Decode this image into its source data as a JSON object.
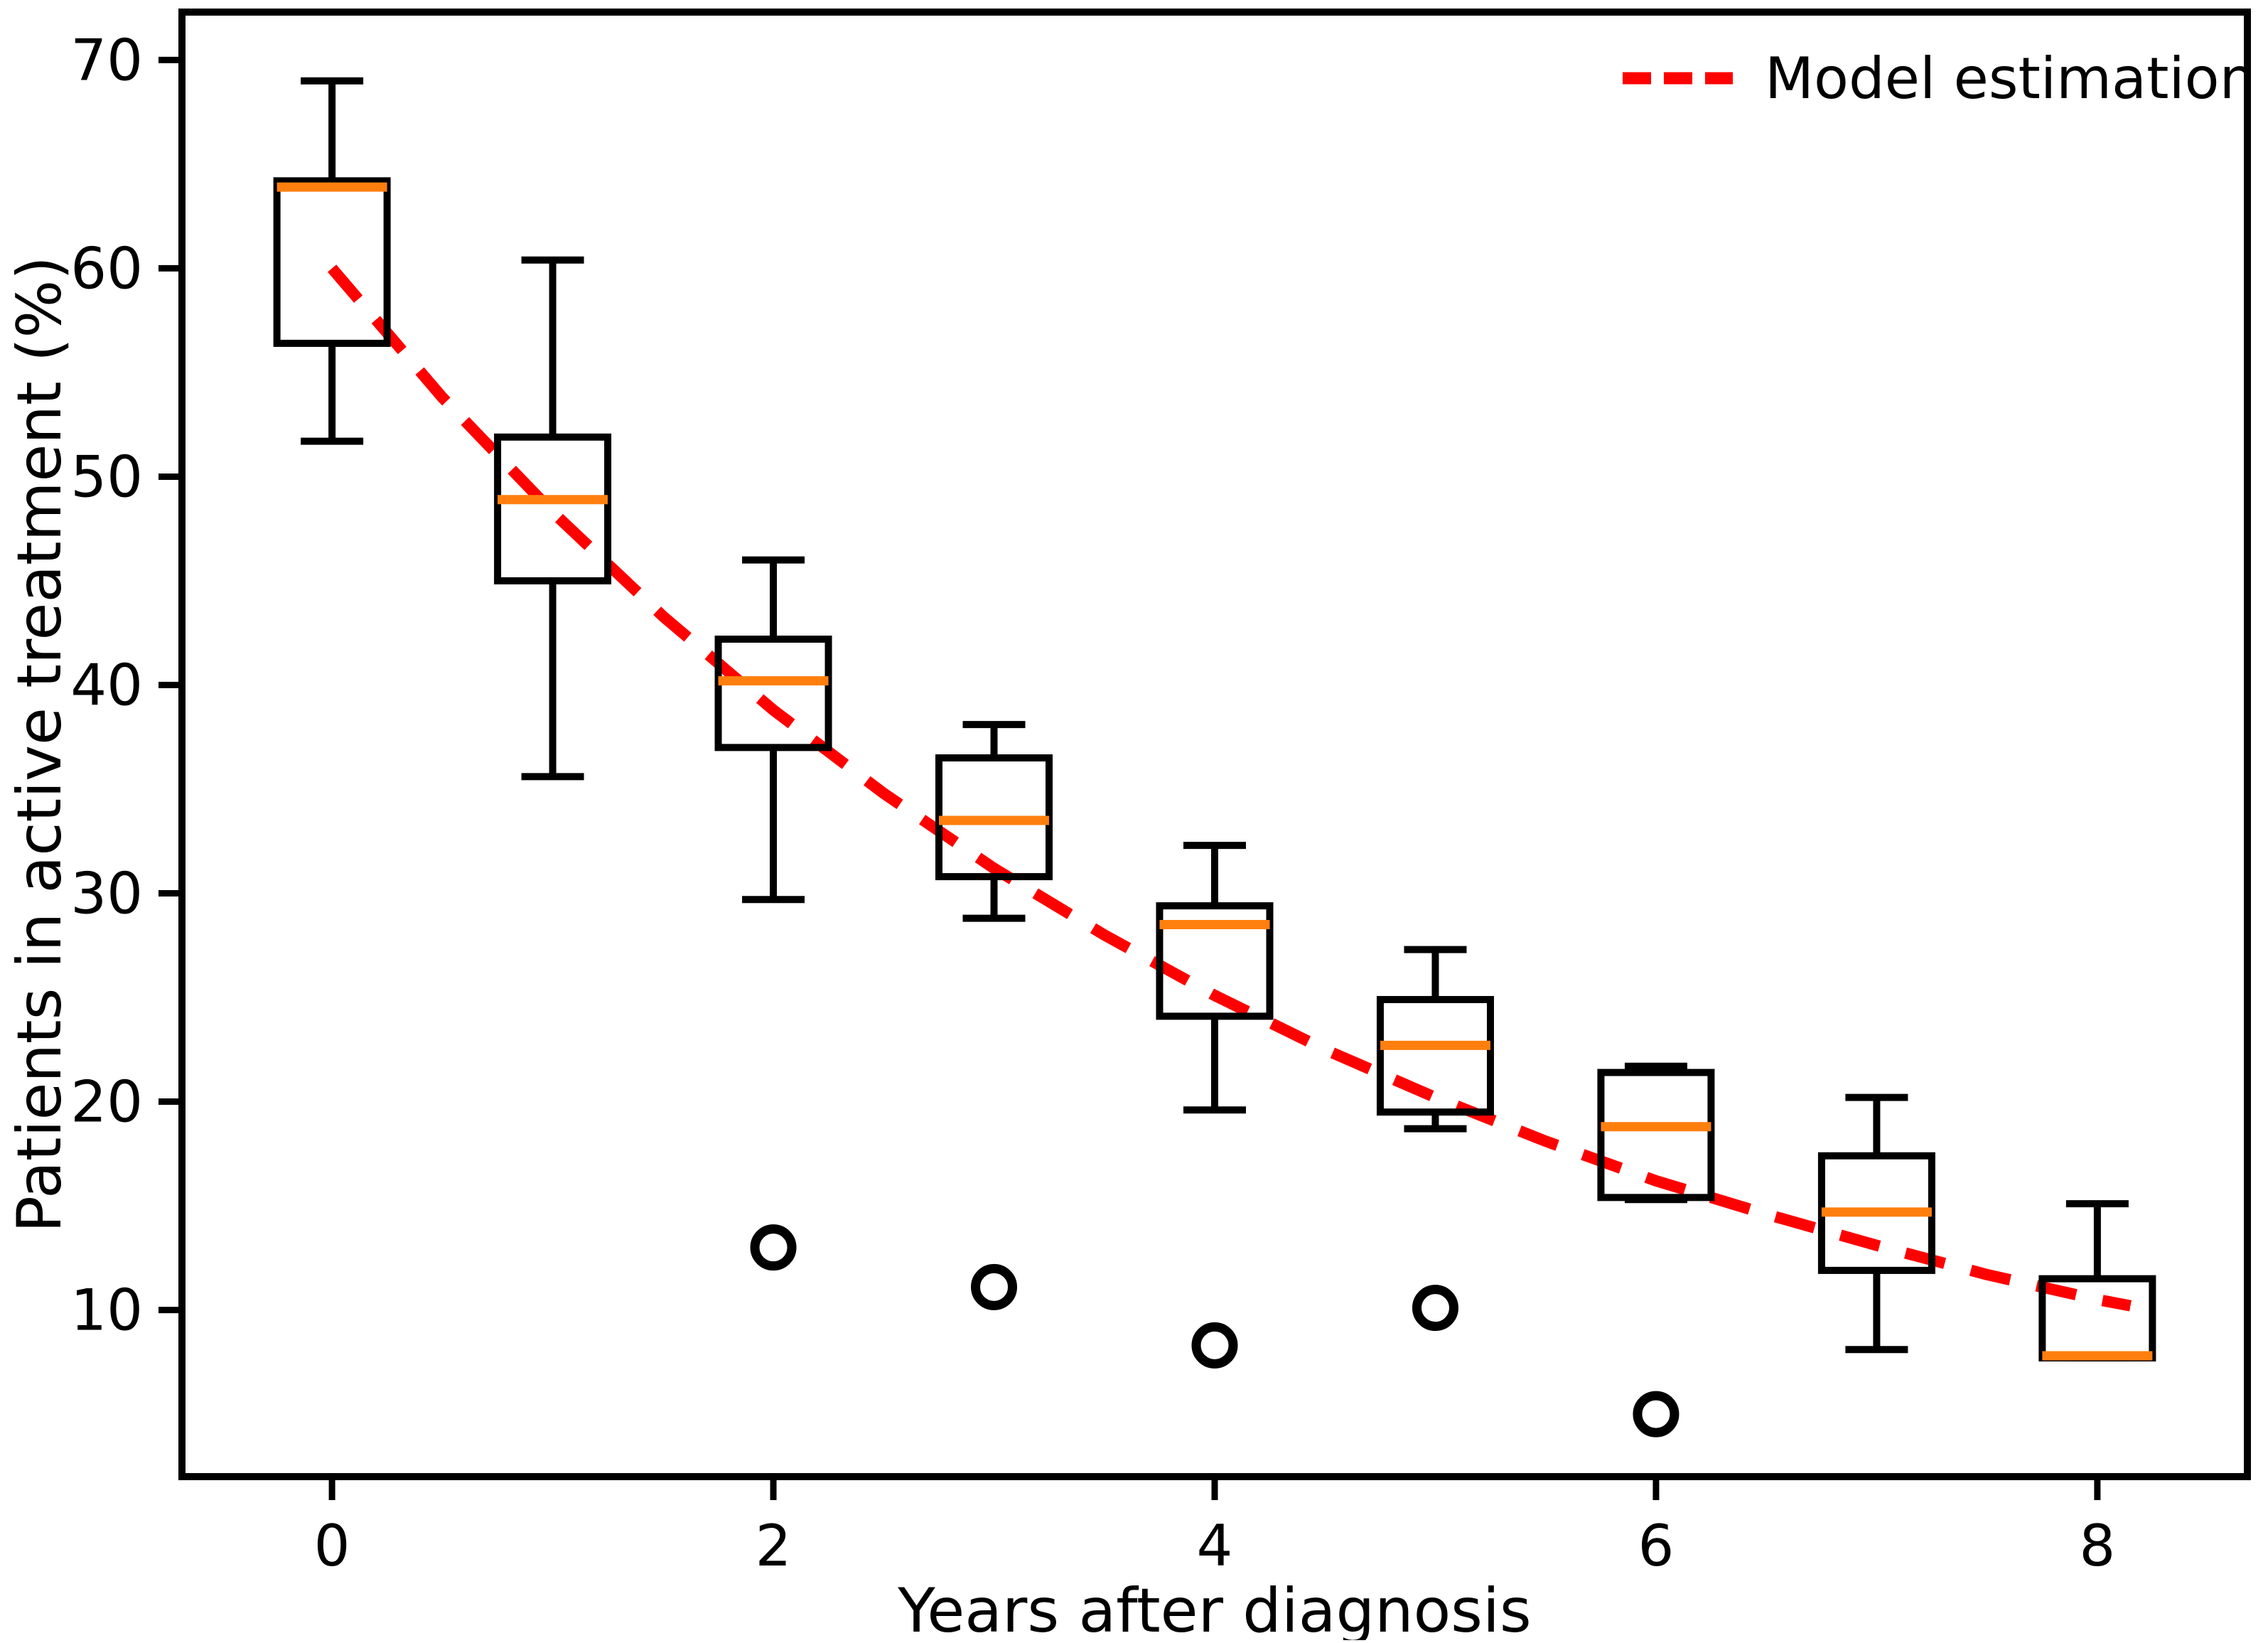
{
  "figure": {
    "background": "#ffffff"
  },
  "chart_data": {
    "type": "boxplot",
    "title": "",
    "xlabel": "Years after diagnosis",
    "ylabel": "Patients in active treatment (%)",
    "x_ticks": [
      0,
      2,
      4,
      6,
      8
    ],
    "y_ticks": [
      10,
      20,
      30,
      40,
      50,
      60,
      70
    ],
    "xlim": [
      -0.68,
      8.68
    ],
    "ylim": [
      2.0,
      72.3
    ],
    "grid": false,
    "colors": {
      "box_line": "#000000",
      "median_line": "#ff7f0e",
      "model_line": "#ff0000",
      "outlier_stroke": "#000000"
    },
    "boxes": [
      {
        "x": 0,
        "whislo": 51.7,
        "q1": 56.4,
        "med": 63.9,
        "q3": 64.2,
        "whishi": 69.0,
        "outliers": []
      },
      {
        "x": 1,
        "whislo": 35.6,
        "q1": 45.0,
        "med": 48.9,
        "q3": 51.9,
        "whishi": 60.4,
        "outliers": []
      },
      {
        "x": 2,
        "whislo": 29.7,
        "q1": 37.0,
        "med": 40.2,
        "q3": 42.2,
        "whishi": 46.0,
        "outliers": [
          13.0
        ]
      },
      {
        "x": 3,
        "whislo": 28.8,
        "q1": 30.8,
        "med": 33.5,
        "q3": 36.5,
        "whishi": 38.1,
        "outliers": [
          11.1
        ]
      },
      {
        "x": 4,
        "whislo": 19.6,
        "q1": 24.1,
        "med": 28.5,
        "q3": 29.4,
        "whishi": 32.3,
        "outliers": [
          8.3
        ]
      },
      {
        "x": 5,
        "whislo": 18.7,
        "q1": 19.5,
        "med": 22.7,
        "q3": 24.9,
        "whishi": 27.3,
        "outliers": [
          10.1
        ]
      },
      {
        "x": 6,
        "whislo": 15.3,
        "q1": 15.4,
        "med": 18.8,
        "q3": 21.4,
        "whishi": 21.7,
        "outliers": [
          5.0
        ]
      },
      {
        "x": 7,
        "whislo": 8.1,
        "q1": 11.9,
        "med": 14.7,
        "q3": 17.4,
        "whishi": 20.2,
        "outliers": []
      },
      {
        "x": 8,
        "whislo": 7.7,
        "q1": 7.7,
        "med": 7.8,
        "q3": 11.5,
        "whishi": 15.1,
        "outliers": []
      }
    ],
    "model": {
      "points": [
        [
          0,
          60.0
        ],
        [
          0.5,
          53.8
        ],
        [
          1,
          48.3
        ],
        [
          1.5,
          43.3
        ],
        [
          2,
          38.8
        ],
        [
          2.5,
          34.8
        ],
        [
          3,
          31.2
        ],
        [
          3.5,
          28.0
        ],
        [
          4,
          25.1
        ],
        [
          4.5,
          22.5
        ],
        [
          5,
          20.2
        ],
        [
          5.5,
          18.1
        ],
        [
          6,
          16.2
        ],
        [
          6.5,
          14.6
        ],
        [
          7,
          13.1
        ],
        [
          7.5,
          11.7
        ],
        [
          8,
          10.5
        ],
        [
          8.15,
          10.2
        ]
      ]
    },
    "legend": {
      "label": "Model estimation",
      "position": "upper right"
    }
  }
}
